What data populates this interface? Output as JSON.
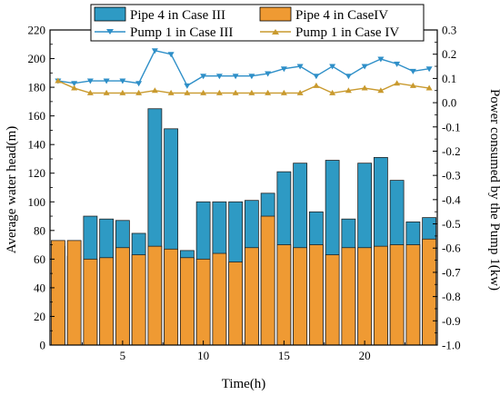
{
  "chart_data": {
    "type": "bar",
    "xlabel": "Time(h)",
    "ylabel_left": "Average water head(m)",
    "ylabel_right": "Power consumed by the Pump 1(kw)",
    "x": [
      1,
      2,
      3,
      4,
      5,
      6,
      7,
      8,
      9,
      10,
      11,
      12,
      13,
      14,
      15,
      16,
      17,
      18,
      19,
      20,
      21,
      22,
      23,
      24
    ],
    "x_ticks": [
      5,
      10,
      15,
      20
    ],
    "x_range": [
      0.5,
      24.5
    ],
    "ylim_left": [
      0,
      220
    ],
    "yticks_left": [
      0,
      20,
      40,
      60,
      80,
      100,
      120,
      140,
      160,
      180,
      200,
      220
    ],
    "ylim_right": [
      -1.0,
      0.3
    ],
    "yticks_right": [
      "0.3",
      "0.2",
      "0.1",
      "0.0",
      "-0.1",
      "-0.2",
      "-0.3",
      "-0.4",
      "-0.5",
      "-0.6",
      "-0.7",
      "-0.8",
      "-0.9",
      "-1.0"
    ],
    "legend_position": "top",
    "bar_series": [
      {
        "name": "Pipe 4 in Case III",
        "color": "#2e9ac4",
        "values": [
          69,
          62,
          90,
          88,
          87,
          78,
          165,
          151,
          66,
          100,
          100,
          100,
          101,
          106,
          121,
          127,
          93,
          129,
          88,
          127,
          131,
          115,
          86,
          89
        ]
      },
      {
        "name": "Pipe 4 in CaseIV",
        "color": "#ef9a33",
        "values": [
          73,
          73,
          60,
          61,
          68,
          63,
          69,
          67,
          61,
          60,
          64,
          58,
          68,
          90,
          70,
          68,
          70,
          63,
          68,
          68,
          69,
          70,
          70,
          74
        ]
      }
    ],
    "line_series": [
      {
        "name": "Pump 1 in Case III",
        "color": "#2e8fc8",
        "marker": "triangle-down",
        "values": [
          0.09,
          0.08,
          0.09,
          0.09,
          0.09,
          0.08,
          0.215,
          0.2,
          0.07,
          0.11,
          0.11,
          0.11,
          0.11,
          0.12,
          0.14,
          0.15,
          0.11,
          0.15,
          0.11,
          0.15,
          0.18,
          0.16,
          0.13,
          0.14
        ]
      },
      {
        "name": "Pump 1 in Case IV",
        "color": "#c99a2e",
        "marker": "triangle-up",
        "values": [
          0.09,
          0.06,
          0.04,
          0.04,
          0.04,
          0.04,
          0.05,
          0.04,
          0.04,
          0.04,
          0.04,
          0.04,
          0.04,
          0.04,
          0.04,
          0.04,
          0.07,
          0.04,
          0.05,
          0.06,
          0.05,
          0.08,
          0.07,
          0.06
        ]
      }
    ]
  }
}
